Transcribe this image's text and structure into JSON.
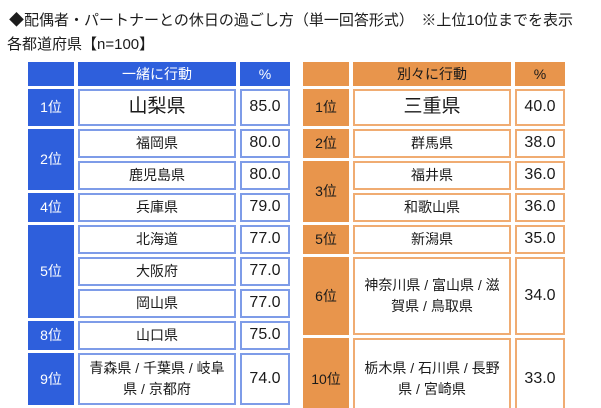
{
  "title": "◆配偶者・パートナーとの休日の過ごし方（単一回答形式）　※上位10位までを表示",
  "subtitle": "各都道府県【n=100】",
  "colors": {
    "blue": "#2e5fdc",
    "blue_light": "#7e9ce8",
    "orange": "#e8954c",
    "orange_light": "#f0ac72"
  },
  "chart_data": [
    {
      "type": "table",
      "title": "一緒に行動",
      "rank_header": "",
      "percent_header": "%",
      "rows": [
        {
          "rank": "1位",
          "prefectures": "山梨県",
          "percent": "85.0"
        },
        {
          "rank": "2位",
          "rank_span": 2,
          "prefectures": "福岡県",
          "percent": "80.0"
        },
        {
          "prefectures": "鹿児島県",
          "percent": "80.0"
        },
        {
          "rank": "4位",
          "prefectures": "兵庫県",
          "percent": "79.0"
        },
        {
          "rank": "5位",
          "rank_span": 3,
          "prefectures": "北海道",
          "percent": "77.0"
        },
        {
          "prefectures": "大阪府",
          "percent": "77.0"
        },
        {
          "prefectures": "岡山県",
          "percent": "77.0"
        },
        {
          "rank": "8位",
          "prefectures": "山口県",
          "percent": "75.0"
        },
        {
          "rank": "9位",
          "prefectures": "青森県 / 千葉県 / 岐阜県 / 京都府",
          "percent": "74.0"
        }
      ]
    },
    {
      "type": "table",
      "title": "別々に行動",
      "rank_header": "",
      "percent_header": "%",
      "rows": [
        {
          "rank": "1位",
          "prefectures": "三重県",
          "percent": "40.0"
        },
        {
          "rank": "2位",
          "prefectures": "群馬県",
          "percent": "38.0"
        },
        {
          "rank": "3位",
          "rank_span": 2,
          "prefectures": "福井県",
          "percent": "36.0"
        },
        {
          "prefectures": "和歌山県",
          "percent": "36.0"
        },
        {
          "rank": "5位",
          "prefectures": "新潟県",
          "percent": "35.0"
        },
        {
          "rank": "6位",
          "prefectures": "神奈川県 / 富山県 / 滋賀県 / 鳥取県",
          "percent": "34.0"
        },
        {
          "rank": "10位",
          "prefectures": "栃木県 / 石川県 / 長野県 / 宮崎県",
          "percent": "33.0"
        }
      ]
    }
  ]
}
